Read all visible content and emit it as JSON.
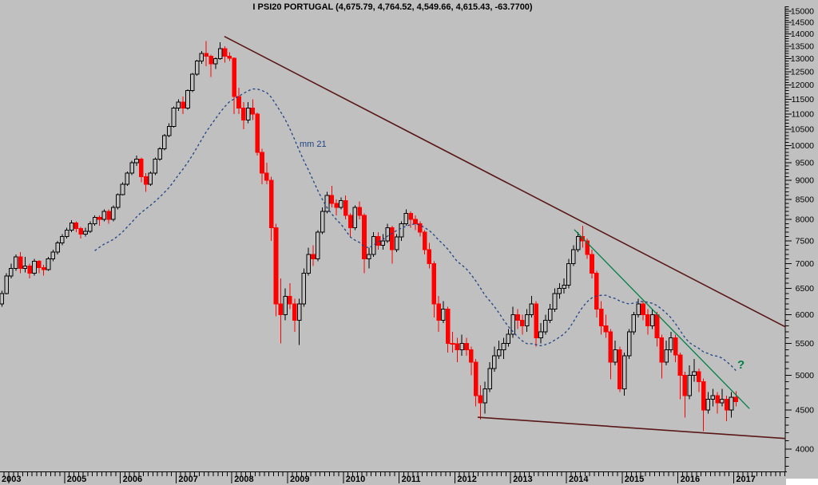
{
  "title": "I PSI20 PORTUGAL (4,675.79, 4,764.52, 4,549.66, 4,615.43, -63.7700)",
  "chart_data": {
    "type": "candlestick",
    "instrument": "PSI20 PORTUGAL",
    "interval": "monthly",
    "title": "I PSI20 PORTUGAL (4,675.79, 4,764.52, 4,549.66, 4,615.43, -63.7700)",
    "ma_label": "mm 21",
    "annotation_text": "?",
    "colors": {
      "background": "#c0c0c0",
      "bullish_outline": "#000000",
      "bearish_fill": "#ff0000",
      "ma_line": "#1f4384",
      "trendline_maroon": "#591717",
      "trendline_green": "#008048",
      "axis": "#000000"
    },
    "y_axis": {
      "scale": "log",
      "side": "right",
      "label_min": 4000,
      "label_max": 15000,
      "label_step": 500,
      "minor_step": 100,
      "minor_min": 3800,
      "minor_max": 15200
    },
    "x_axis": {
      "start_year": 2003,
      "start_month": 11,
      "end_year": 2017,
      "end_month": 1,
      "year_labels": [
        "2003",
        "2005",
        "2006",
        "2007",
        "2008",
        "2009",
        "2010",
        "2011",
        "2012",
        "2013",
        "2014",
        "2015",
        "2016",
        "2017"
      ]
    },
    "moving_average": {
      "period": 21,
      "kind": "simple",
      "applied_to": "close"
    },
    "trendlines": [
      {
        "name": "upper-resistance",
        "color": "#591717",
        "width": 1.6,
        "m1": 47.9,
        "p1": 13900,
        "m2": 168.6,
        "p2": 5786
      },
      {
        "name": "lower-support",
        "color": "#591717",
        "width": 1.6,
        "m1": 102.4,
        "p1": 4404,
        "m2": 168.6,
        "p2": 4130
      },
      {
        "name": "green-downtrend",
        "color": "#008048",
        "width": 1.3,
        "m1": 123.2,
        "p1": 7760,
        "m2": 160.9,
        "p2": 4519
      }
    ],
    "series": {
      "start": "2003-11",
      "ohlc": [
        [
          6200,
          6450,
          6150,
          6400
        ],
        [
          6400,
          6800,
          6380,
          6747
        ],
        [
          6747,
          7000,
          6700,
          6900
        ],
        [
          6900,
          7200,
          6850,
          7150
        ],
        [
          7150,
          7250,
          6800,
          6900
        ],
        [
          6900,
          7150,
          6820,
          6950
        ],
        [
          6950,
          7000,
          6700,
          6800
        ],
        [
          6800,
          7100,
          6750,
          7050
        ],
        [
          7050,
          7080,
          6800,
          6920
        ],
        [
          6920,
          6980,
          6750,
          6880
        ],
        [
          6880,
          7150,
          6850,
          7100
        ],
        [
          7100,
          7300,
          7050,
          7250
        ],
        [
          7250,
          7500,
          7200,
          7450
        ],
        [
          7450,
          7650,
          7400,
          7600
        ],
        [
          7600,
          7800,
          7550,
          7750
        ],
        [
          7750,
          7980,
          7700,
          7920
        ],
        [
          7920,
          7950,
          7700,
          7780
        ],
        [
          7780,
          7820,
          7550,
          7650
        ],
        [
          7650,
          7800,
          7600,
          7720
        ],
        [
          7720,
          7950,
          7680,
          7900
        ],
        [
          7900,
          8100,
          7850,
          8050
        ],
        [
          8050,
          8100,
          7850,
          8000
        ],
        [
          8000,
          8250,
          7950,
          8200
        ],
        [
          8200,
          8250,
          7900,
          8000
        ],
        [
          8000,
          8350,
          7950,
          8300
        ],
        [
          8300,
          8650,
          8250,
          8619
        ],
        [
          8619,
          8950,
          8600,
          8900
        ],
        [
          8900,
          9250,
          8850,
          9200
        ],
        [
          9200,
          9550,
          9150,
          9500
        ],
        [
          9500,
          9700,
          9400,
          9600
        ],
        [
          9600,
          9650,
          8950,
          9100
        ],
        [
          9100,
          9200,
          8700,
          8900
        ],
        [
          8900,
          9250,
          8850,
          9200
        ],
        [
          9200,
          9650,
          9150,
          9600
        ],
        [
          9600,
          9950,
          9550,
          9900
        ],
        [
          9900,
          10350,
          9850,
          10300
        ],
        [
          10300,
          10700,
          10250,
          10600
        ],
        [
          10600,
          11250,
          10550,
          11198
        ],
        [
          11198,
          11500,
          11100,
          11400
        ],
        [
          11400,
          11600,
          11000,
          11200
        ],
        [
          11200,
          11850,
          11150,
          11800
        ],
        [
          11800,
          12450,
          11750,
          12400
        ],
        [
          12400,
          12950,
          12350,
          12900
        ],
        [
          12900,
          13300,
          12800,
          13200
        ],
        [
          13200,
          13702,
          12700,
          13100
        ],
        [
          13100,
          13150,
          12300,
          12800
        ],
        [
          12800,
          13050,
          12600,
          13000
        ],
        [
          13000,
          13650,
          12950,
          13400
        ],
        [
          13400,
          13500,
          12850,
          13100
        ],
        [
          13100,
          13250,
          12900,
          13019
        ],
        [
          13019,
          13050,
          11000,
          11600
        ],
        [
          11600,
          11900,
          11000,
          11200
        ],
        [
          11200,
          11400,
          10500,
          10800
        ],
        [
          10800,
          11400,
          10700,
          11200
        ],
        [
          11200,
          11500,
          10800,
          11000
        ],
        [
          11000,
          11050,
          9700,
          9800
        ],
        [
          9800,
          9900,
          8900,
          9200
        ],
        [
          9200,
          9500,
          8900,
          9000
        ],
        [
          9000,
          9100,
          7500,
          7800
        ],
        [
          7800,
          7900,
          5970,
          6200
        ],
        [
          6200,
          6700,
          5500,
          6000
        ],
        [
          6000,
          6500,
          5900,
          6341
        ],
        [
          6341,
          6600,
          6100,
          6200
        ],
        [
          6200,
          6300,
          5700,
          5900
        ],
        [
          5900,
          6300,
          5474,
          6200
        ],
        [
          6200,
          6900,
          6150,
          6800
        ],
        [
          6800,
          7350,
          6750,
          7200
        ],
        [
          7200,
          7400,
          6950,
          7100
        ],
        [
          7100,
          7750,
          7050,
          7700
        ],
        [
          7700,
          8300,
          7650,
          8200
        ],
        [
          8200,
          8700,
          8150,
          8600
        ],
        [
          8600,
          8850,
          8300,
          8400
        ],
        [
          8400,
          8500,
          8100,
          8300
        ],
        [
          8300,
          8550,
          8250,
          8464
        ],
        [
          8464,
          8600,
          8000,
          8100
        ],
        [
          8100,
          8150,
          7600,
          7800
        ],
        [
          7800,
          8350,
          7750,
          8300
        ],
        [
          8300,
          8450,
          8000,
          8100
        ],
        [
          8100,
          8150,
          6800,
          7100
        ],
        [
          7100,
          7350,
          6900,
          7200
        ],
        [
          7200,
          7700,
          7150,
          7600
        ],
        [
          7600,
          7700,
          7300,
          7400
        ],
        [
          7400,
          7650,
          7300,
          7500
        ],
        [
          7500,
          7900,
          7450,
          7800
        ],
        [
          7800,
          7850,
          7000,
          7300
        ],
        [
          7300,
          7650,
          7250,
          7588
        ],
        [
          7588,
          7950,
          7500,
          7900
        ],
        [
          7900,
          8250,
          7850,
          8150
        ],
        [
          8150,
          8200,
          7800,
          8000
        ],
        [
          8000,
          8100,
          7750,
          7900
        ],
        [
          7900,
          7950,
          7600,
          7700
        ],
        [
          7700,
          7750,
          7200,
          7300
        ],
        [
          7300,
          7450,
          6900,
          7000
        ],
        [
          7000,
          7050,
          5950,
          6200
        ],
        [
          6200,
          6350,
          5700,
          5900
        ],
        [
          5900,
          6250,
          5850,
          6100
        ],
        [
          6100,
          6150,
          5350,
          5500
        ],
        [
          5500,
          5700,
          5350,
          5494
        ],
        [
          5494,
          5600,
          5200,
          5400
        ],
        [
          5400,
          5650,
          5300,
          5500
        ],
        [
          5500,
          5600,
          5300,
          5400
        ],
        [
          5400,
          5450,
          5000,
          5200
        ],
        [
          5200,
          5250,
          4550,
          4700
        ],
        [
          4700,
          4850,
          4372,
          4600
        ],
        [
          4600,
          4900,
          4450,
          4800
        ],
        [
          4800,
          5200,
          4750,
          5100
        ],
        [
          5100,
          5450,
          5050,
          5300
        ],
        [
          5300,
          5550,
          5250,
          5400
        ],
        [
          5400,
          5600,
          5250,
          5500
        ],
        [
          5500,
          5750,
          5450,
          5655
        ],
        [
          5655,
          6150,
          5600,
          6000
        ],
        [
          6000,
          6100,
          5750,
          5900
        ],
        [
          5900,
          6000,
          5650,
          5800
        ],
        [
          5800,
          6100,
          5700,
          6000
        ],
        [
          6000,
          6350,
          5950,
          6200
        ],
        [
          6200,
          6250,
          5450,
          5600
        ],
        [
          5600,
          5850,
          5500,
          5700
        ],
        [
          5700,
          6000,
          5650,
          5900
        ],
        [
          5900,
          6200,
          5850,
          6100
        ],
        [
          6100,
          6500,
          6050,
          6400
        ],
        [
          6400,
          6600,
          6300,
          6500
        ],
        [
          6500,
          6700,
          6400,
          6559
        ],
        [
          6559,
          7100,
          6500,
          7000
        ],
        [
          7000,
          7400,
          6950,
          7300
        ],
        [
          7300,
          7700,
          7250,
          7600
        ],
        [
          7600,
          7854,
          7350,
          7500
        ],
        [
          7500,
          7550,
          7100,
          7200
        ],
        [
          7200,
          7300,
          6700,
          6800
        ],
        [
          6800,
          6850,
          5950,
          6100
        ],
        [
          6100,
          6250,
          5650,
          5800
        ],
        [
          5800,
          6000,
          5600,
          5700
        ],
        [
          5700,
          5750,
          4937,
          5200
        ],
        [
          5200,
          5550,
          5150,
          5400
        ],
        [
          5400,
          5450,
          4750,
          4799
        ],
        [
          4799,
          5350,
          4700,
          5300
        ],
        [
          5300,
          5750,
          5250,
          5700
        ],
        [
          5700,
          6050,
          5650,
          6000
        ],
        [
          6000,
          6300,
          5950,
          6200
        ],
        [
          6200,
          6250,
          5900,
          6000
        ],
        [
          6000,
          6100,
          5650,
          5800
        ],
        [
          5800,
          6100,
          5750,
          6000
        ],
        [
          6000,
          6050,
          5450,
          5600
        ],
        [
          5600,
          5650,
          4950,
          5200
        ],
        [
          5200,
          5550,
          5150,
          5400
        ],
        [
          5400,
          5700,
          5350,
          5600
        ],
        [
          5600,
          5650,
          5200,
          5313
        ],
        [
          5313,
          5350,
          4650,
          5000
        ],
        [
          5000,
          5050,
          4400,
          4700
        ],
        [
          4700,
          5150,
          4650,
          5000
        ],
        [
          5000,
          5250,
          4900,
          5050
        ],
        [
          5050,
          5100,
          4750,
          4900
        ],
        [
          4900,
          4950,
          4224,
          4500
        ],
        [
          4500,
          4750,
          4450,
          4650
        ],
        [
          4650,
          4800,
          4550,
          4700
        ],
        [
          4700,
          4750,
          4450,
          4600
        ],
        [
          4600,
          4800,
          4550,
          4650
        ],
        [
          4650,
          4700,
          4350,
          4500
        ],
        [
          4500,
          4750,
          4400,
          4679
        ],
        [
          4676,
          4765,
          4550,
          4615
        ]
      ]
    }
  }
}
